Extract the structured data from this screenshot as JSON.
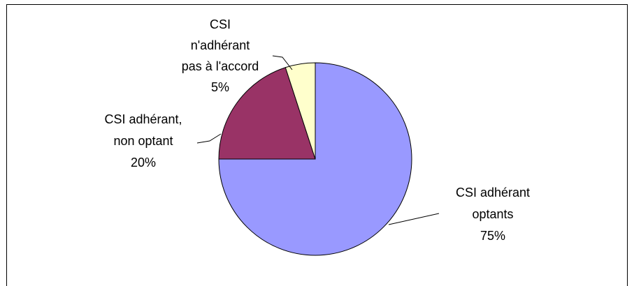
{
  "chart_data": {
    "type": "pie",
    "categories": [
      "CSI adhérant\noptants",
      "CSI adhérant,\nnon optant",
      "CSI\nn'adhérant\npas à l'accord"
    ],
    "values": [
      75,
      20,
      5
    ],
    "value_labels": [
      "75%",
      "20%",
      "5%"
    ],
    "colors": [
      "#9999ff",
      "#993366",
      "#ffffcc"
    ]
  }
}
